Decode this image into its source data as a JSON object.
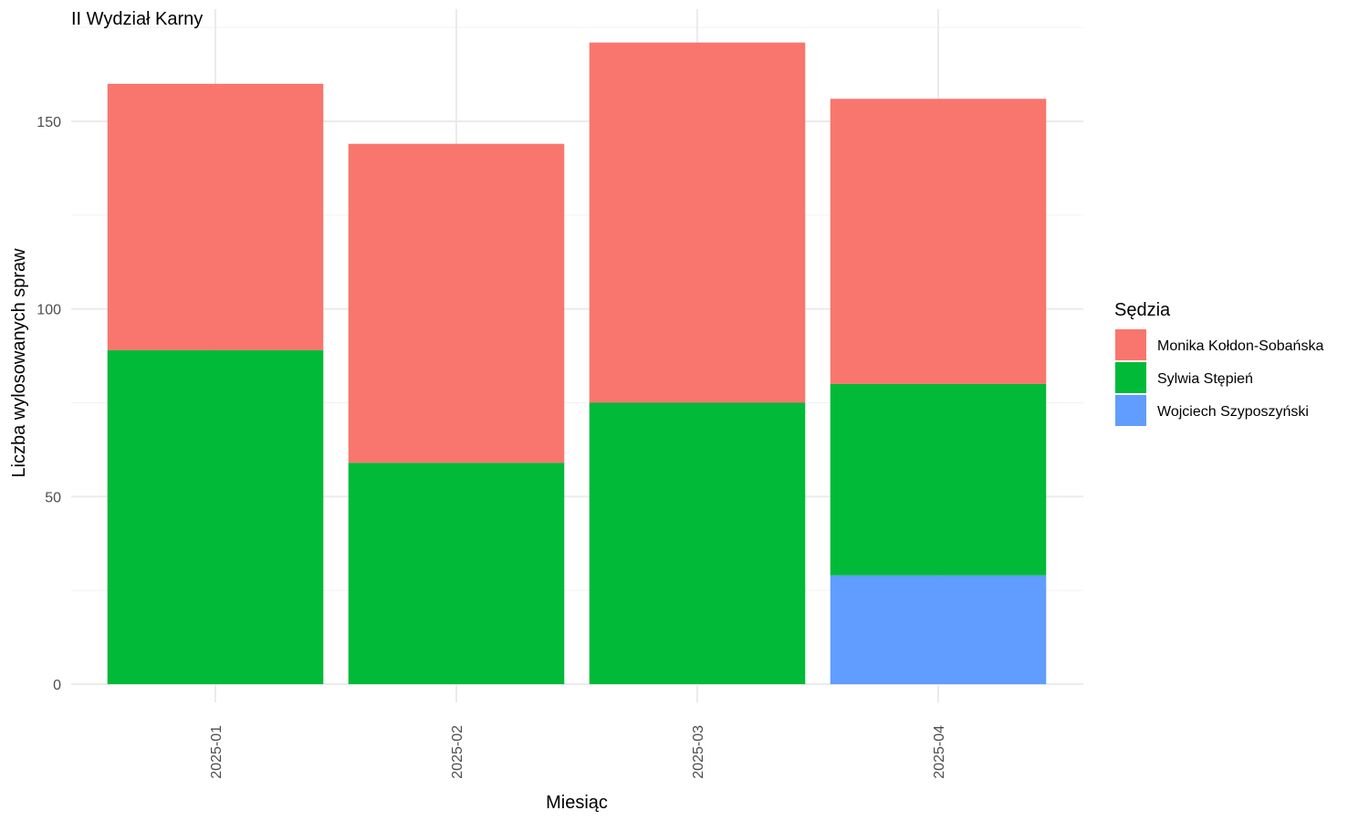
{
  "chart_data": {
    "type": "bar",
    "stacked": true,
    "subtitle": "II Wydział Karny",
    "xlabel": "Miesiąc",
    "ylabel": "Liczba wylosowanych spraw",
    "categories": [
      "2025-01",
      "2025-02",
      "2025-03",
      "2025-04"
    ],
    "ylim": [
      0,
      175
    ],
    "yticks": [
      0,
      50,
      100,
      150
    ],
    "grid": true,
    "legend": {
      "title": "Sędzia",
      "position": "right"
    },
    "series": [
      {
        "name": "Monika Kołdon-Sobańska",
        "color": "#F8766D",
        "values": [
          71,
          85,
          96,
          76
        ]
      },
      {
        "name": "Sylwia Stępień",
        "color": "#00BA38",
        "values": [
          89,
          59,
          75,
          51
        ]
      },
      {
        "name": "Wojciech Szyposzyński",
        "color": "#619CFF",
        "values": [
          0,
          0,
          0,
          29
        ]
      }
    ]
  }
}
